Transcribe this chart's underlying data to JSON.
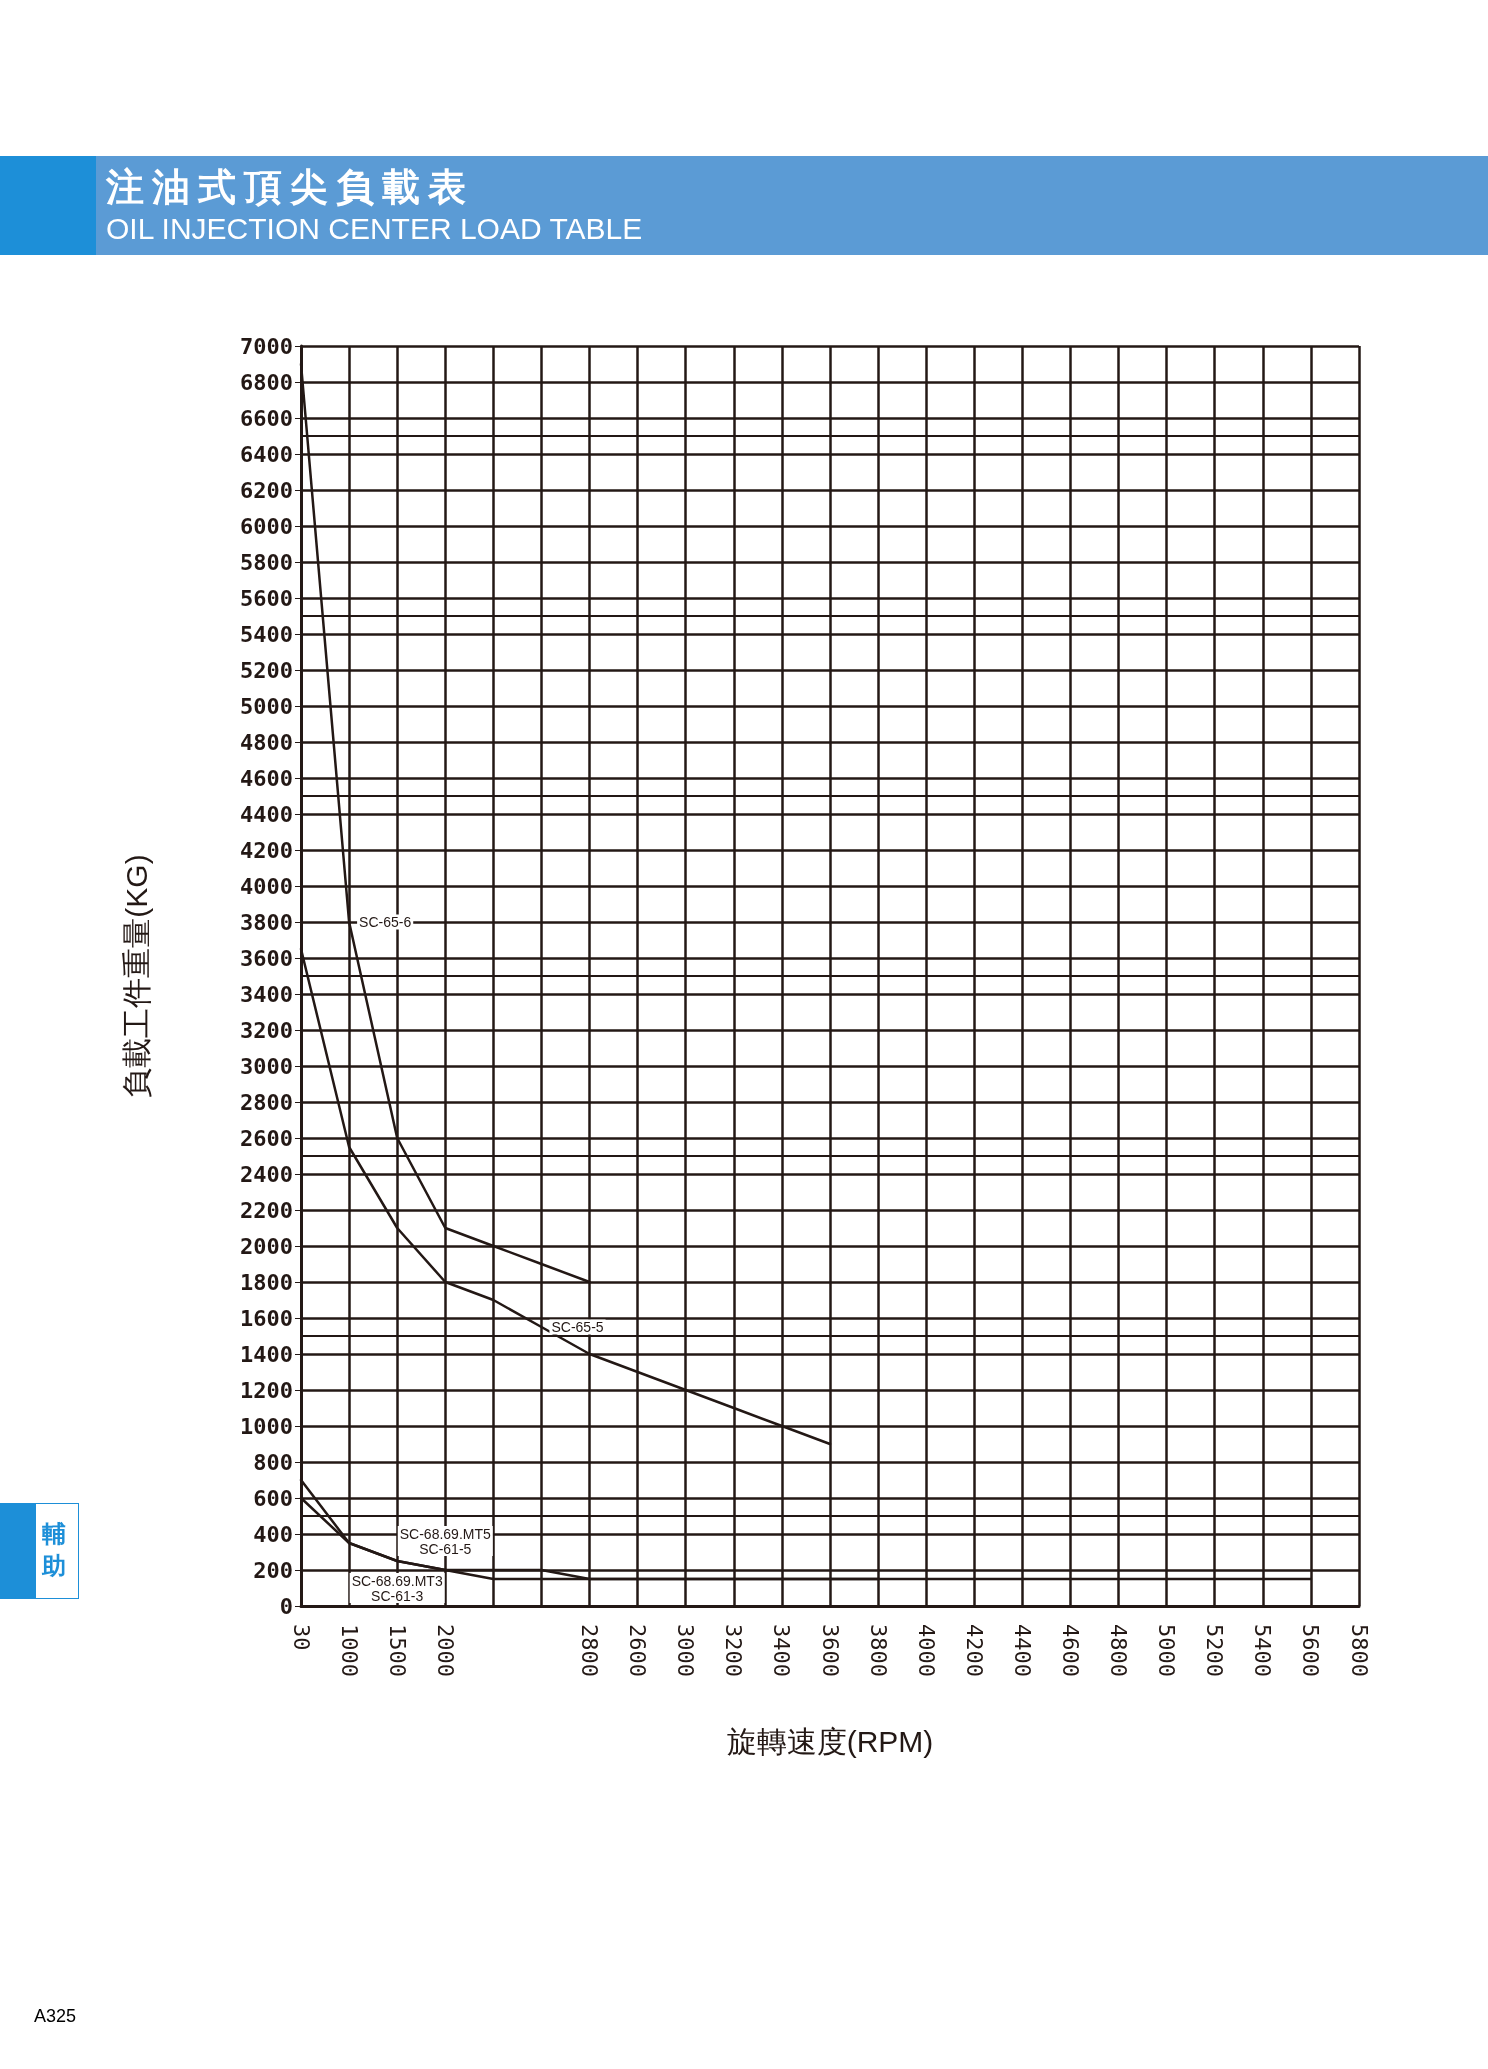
{
  "chart_data": {
    "type": "line",
    "title": "注油式頂尖負載表",
    "subtitle": "OIL INJECTION CENTER LOAD TABLE",
    "xlabel": "旋轉速度(RPM)",
    "ylabel": "負載工件重量(KG)",
    "annotations": [
      "輔助",
      "A325"
    ],
    "categories": [
      "30",
      "1000",
      "1500",
      "2000",
      null,
      null,
      "2800",
      "2600",
      "3000",
      "3200",
      "3400",
      "3600",
      "3800",
      "4000",
      "4200",
      "4400",
      "4600",
      "4800",
      "5000",
      "5200",
      "5400",
      "5600",
      "5800"
    ],
    "series": [
      {
        "name": "SC-65-6",
        "color": "#231815",
        "values": [
          6900,
          3800,
          2600,
          2100,
          2000,
          1900,
          1800,
          null,
          null,
          null,
          null,
          null,
          null,
          null,
          null,
          null,
          null,
          null,
          null,
          null,
          null,
          null,
          null
        ]
      },
      {
        "name": "SC-65-5",
        "color": "#231815",
        "values": [
          3650,
          2550,
          2100,
          1800,
          1700,
          1550,
          1400,
          1300,
          1200,
          1100,
          1000,
          900,
          null,
          null,
          null,
          null,
          null,
          null,
          null,
          null,
          null,
          null,
          null
        ]
      },
      {
        "name": "SC-68.69.MT5\nSC-61-5",
        "color": "#231815",
        "values": [
          700,
          350,
          250,
          200,
          200,
          200,
          150,
          150,
          150,
          150,
          150,
          150,
          150,
          150,
          150,
          150,
          150,
          150,
          150,
          150,
          150,
          150,
          null
        ]
      },
      {
        "name": "SC-68.69.MT3\nSC-61-3",
        "color": "#231815",
        "values": [
          600,
          350,
          250,
          200,
          150,
          150,
          150,
          150,
          150,
          150,
          150,
          150,
          150,
          null,
          null,
          null,
          null,
          null,
          null,
          null,
          null,
          null,
          null
        ]
      }
    ],
    "ylim": [
      0,
      7000
    ],
    "yticks": [
      0,
      200,
      400,
      600,
      800,
      1000,
      1200,
      1400,
      1600,
      1800,
      2000,
      2200,
      2400,
      2600,
      2800,
      3000,
      3200,
      3400,
      3600,
      3800,
      4000,
      4200,
      4400,
      4600,
      4800,
      5000,
      5200,
      5400,
      5600,
      5800,
      6000,
      6200,
      6400,
      6600,
      6800,
      7000
    ],
    "grid": true,
    "marker": "none",
    "line_style": "solid"
  }
}
